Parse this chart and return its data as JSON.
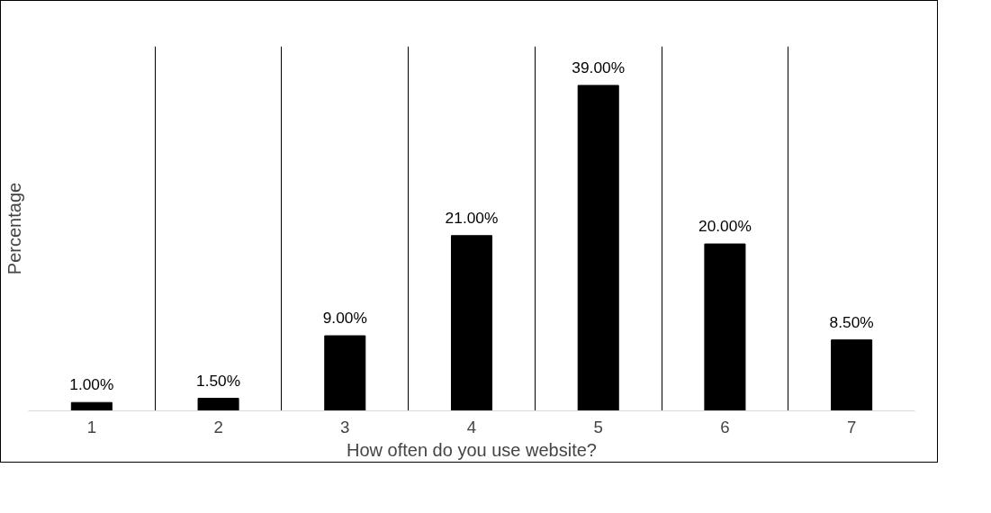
{
  "chart_data": {
    "type": "bar",
    "xlabel": "How often do you use website?",
    "ylabel": "Percentage",
    "categories": [
      "1",
      "2",
      "3",
      "4",
      "5",
      "6",
      "7"
    ],
    "values": [
      1.0,
      1.5,
      9.0,
      21.0,
      39.0,
      20.0,
      8.5
    ],
    "value_labels": [
      "1.00%",
      "1.50%",
      "9.00%",
      "21.00%",
      "39.00%",
      "20.00%",
      "8.50%"
    ],
    "color": "#000000",
    "grid": "x"
  }
}
